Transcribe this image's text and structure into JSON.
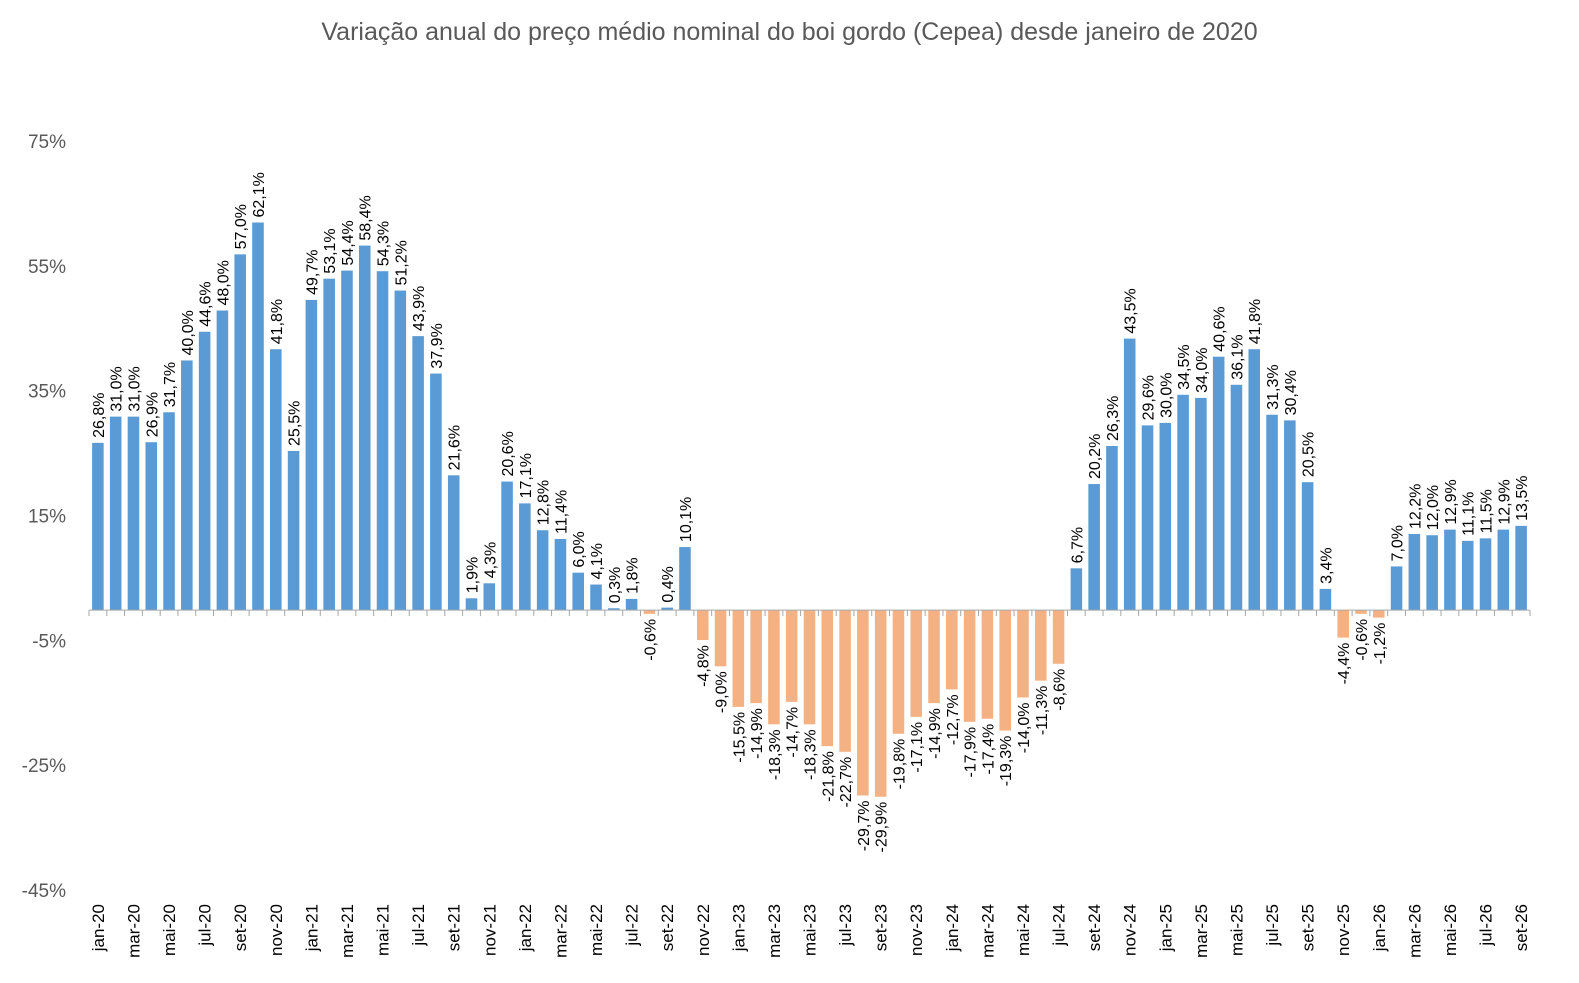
{
  "chart_data": {
    "type": "bar",
    "title": "Variação anual do preço médio nominal do boi gordo (Cepea) desde janeiro de 2020",
    "xlabel": "",
    "ylabel": "",
    "ylim": [
      -45,
      75
    ],
    "yticks": [
      "75%",
      "55%",
      "35%",
      "15%",
      "-5%",
      "-25%",
      "-45%"
    ],
    "ytick_values": [
      75,
      55,
      35,
      15,
      -5,
      -25,
      -45
    ],
    "grid": false,
    "legend": "none",
    "colors": {
      "positive": "#5b9bd5",
      "negative": "#f4b183"
    },
    "categories": [
      "jan-20",
      "fev-20",
      "mar-20",
      "abr-20",
      "mai-20",
      "jun-20",
      "jul-20",
      "ago-20",
      "set-20",
      "out-20",
      "nov-20",
      "dez-20",
      "jan-21",
      "fev-21",
      "mar-21",
      "abr-21",
      "mai-21",
      "jun-21",
      "jul-21",
      "ago-21",
      "set-21",
      "out-21",
      "nov-21",
      "dez-21",
      "jan-22",
      "fev-22",
      "mar-22",
      "abr-22",
      "mai-22",
      "jun-22",
      "jul-22",
      "ago-22",
      "set-22",
      "out-22",
      "nov-22",
      "dez-22",
      "jan-23",
      "fev-23",
      "mar-23",
      "abr-23",
      "mai-23",
      "jun-23",
      "jul-23",
      "ago-23",
      "set-23",
      "out-23",
      "nov-23",
      "dez-23",
      "jan-24",
      "fev-24",
      "mar-24",
      "abr-24",
      "mai-24",
      "jun-24",
      "jul-24",
      "ago-24",
      "set-24",
      "out-24",
      "nov-24",
      "dez-24",
      "jan-25",
      "fev-25",
      "mar-25",
      "abr-25",
      "mai-25",
      "jun-25",
      "jul-25",
      "ago-25",
      "set-25",
      "out-25",
      "nov-25",
      "dez-25",
      "jan-26",
      "fev-26",
      "mar-26",
      "abr-26",
      "mai-26",
      "jun-26",
      "jul-26",
      "ago-26",
      "set-26"
    ],
    "tick_labels": [
      "jan-20",
      "mar-20",
      "mai-20",
      "jul-20",
      "set-20",
      "nov-20",
      "jan-21",
      "mar-21",
      "mai-21",
      "jul-21",
      "set-21",
      "nov-21",
      "jan-22",
      "mar-22",
      "mai-22",
      "jul-22",
      "set-22",
      "nov-22",
      "jan-23",
      "mar-23",
      "mai-23",
      "jul-23",
      "set-23",
      "nov-23",
      "jan-24",
      "mar-24",
      "mai-24",
      "jul-24",
      "set-24",
      "nov-24",
      "jan-25",
      "mar-25",
      "mai-25",
      "jul-25",
      "set-25",
      "nov-25",
      "jan-26",
      "mar-26",
      "mai-26",
      "jul-26",
      "set-26"
    ],
    "values": [
      26.8,
      31.0,
      31.0,
      26.9,
      31.7,
      40.0,
      44.6,
      48.0,
      57.0,
      62.1,
      41.8,
      25.5,
      49.7,
      53.1,
      54.4,
      58.4,
      54.3,
      51.2,
      43.9,
      37.9,
      21.6,
      1.9,
      4.3,
      20.6,
      17.1,
      12.8,
      11.4,
      6.0,
      4.1,
      0.3,
      1.8,
      -0.6,
      0.4,
      10.1,
      -4.8,
      -9.0,
      -15.5,
      -14.9,
      -18.3,
      -14.7,
      -18.3,
      -21.8,
      -22.7,
      -29.7,
      -29.9,
      -19.8,
      -17.1,
      -14.9,
      -12.7,
      -17.9,
      -17.4,
      -19.3,
      -14.0,
      -11.3,
      -8.6,
      6.7,
      20.2,
      26.3,
      43.5,
      29.6,
      30.0,
      34.5,
      34.0,
      40.6,
      36.1,
      41.8,
      31.3,
      30.4,
      20.5,
      3.4,
      -4.4,
      -0.6,
      -1.2,
      7.0,
      12.2,
      12.0,
      12.9,
      11.1,
      11.5,
      12.9,
      13.5
    ],
    "data_labels": [
      "26,8%",
      "31,0%",
      "31,0%",
      "26,9%",
      "31,7%",
      "40,0%",
      "44,6%",
      "48,0%",
      "57,0%",
      "62,1%",
      "41,8%",
      "25,5%",
      "49,7%",
      "53,1%",
      "54,4%",
      "58,4%",
      "54,3%",
      "51,2%",
      "43,9%",
      "37,9%",
      "21,6%",
      "1,9%",
      "4,3%",
      "20,6%",
      "17,1%",
      "12,8%",
      "11,4%",
      "6,0%",
      "4,1%",
      "0,3%",
      "1,8%",
      "-0,6%",
      "0,4%",
      "10,1%",
      "-4,8%",
      "-9,0%",
      "-15,5%",
      "-14,9%",
      "-18,3%",
      "-14,7%",
      "-18,3%",
      "-21,8%",
      "-22,7%",
      "-29,7%",
      "-29,9%",
      "-19,8%",
      "-17,1%",
      "-14,9%",
      "-12,7%",
      "-17,9%",
      "-17,4%",
      "-19,3%",
      "-14,0%",
      "-11,3%",
      "-8,6%",
      "6,7%",
      "20,2%",
      "26,3%",
      "43,5%",
      "29,6%",
      "30,0%",
      "34,5%",
      "34,0%",
      "40,6%",
      "36,1%",
      "41,8%",
      "31,3%",
      "30,4%",
      "20,5%",
      "3,4%",
      "-4,4%",
      "-0,6%",
      "-1,2%",
      "7,0%",
      "12,2%",
      "12,0%",
      "12,9%",
      "11,1%",
      "11,5%",
      "12,9%",
      "13,5%"
    ]
  }
}
